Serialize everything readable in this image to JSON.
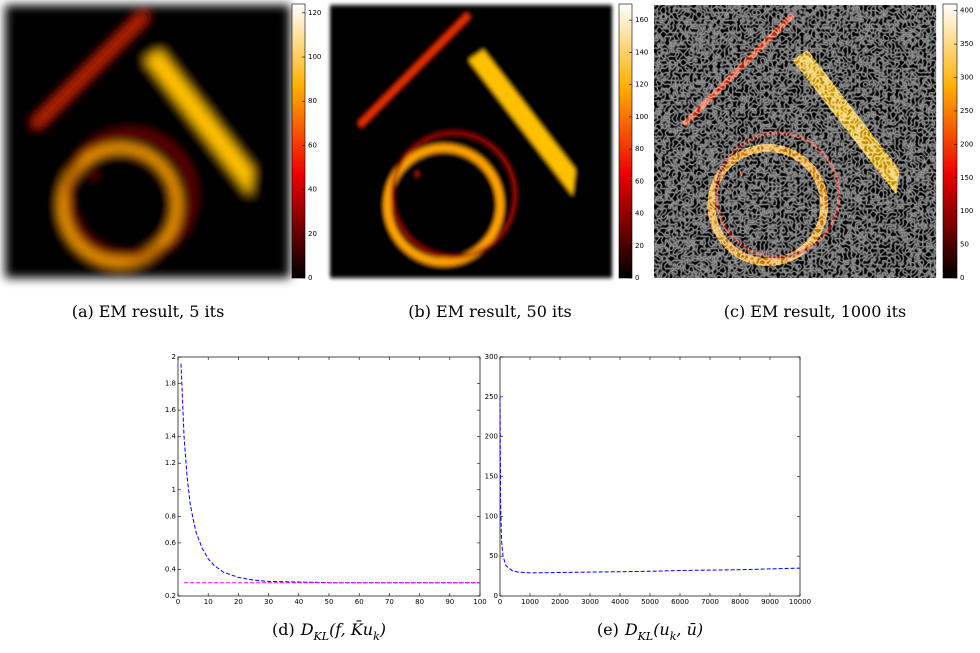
{
  "panels": [
    {
      "caption": {
        "label": "(a)",
        "text": "EM result, 5 its"
      },
      "colorbar": {
        "lim": [
          0,
          124
        ],
        "ticks": [
          0,
          20,
          40,
          60,
          80,
          100,
          120
        ]
      }
    },
    {
      "caption": {
        "label": "(b)",
        "text": "EM result, 50 its"
      },
      "colorbar": {
        "lim": [
          0,
          170
        ],
        "ticks": [
          0,
          20,
          40,
          60,
          80,
          100,
          120,
          140,
          160
        ]
      }
    },
    {
      "caption": {
        "label": "(c)",
        "text": "EM result, 1000 its"
      },
      "colorbar": {
        "lim": [
          0,
          410
        ],
        "ticks": [
          0,
          50,
          100,
          150,
          200,
          250,
          300,
          350,
          400
        ]
      }
    }
  ],
  "chart_data": [
    {
      "type": "line",
      "caption": {
        "label": "(d)",
        "parts": [
          {
            "text": "D"
          },
          {
            "text": "KL",
            "sub": true
          },
          {
            "text": "(f, K̄u"
          },
          {
            "text": "k",
            "sub": true
          },
          {
            "text": ")"
          }
        ]
      },
      "xlim": [
        0,
        100
      ],
      "xticks": [
        0,
        10,
        20,
        30,
        40,
        50,
        60,
        70,
        80,
        90,
        100
      ],
      "ylim": [
        0.2,
        2
      ],
      "yticks": [
        0.2,
        0.4,
        0.6,
        0.8,
        1,
        1.2,
        1.4,
        1.6,
        1.8,
        2
      ],
      "series": [
        {
          "color": "#0000ff",
          "x": [
            1,
            2,
            3,
            4,
            5,
            6,
            8,
            10,
            12,
            15,
            20,
            25,
            30,
            40,
            50,
            60,
            70,
            80,
            90,
            100
          ],
          "values": [
            1.95,
            1.4,
            1.1,
            0.9,
            0.78,
            0.68,
            0.56,
            0.48,
            0.43,
            0.38,
            0.34,
            0.32,
            0.31,
            0.305,
            0.3,
            0.3,
            0.3,
            0.3,
            0.3,
            0.3
          ]
        },
        {
          "color": "#ff00ff",
          "x": [
            2,
            100
          ],
          "values": [
            0.3,
            0.3
          ]
        }
      ]
    },
    {
      "type": "line",
      "caption": {
        "label": "(e)",
        "parts": [
          {
            "text": "D"
          },
          {
            "text": "KL",
            "sub": true
          },
          {
            "text": "(u"
          },
          {
            "text": "k",
            "sub": true
          },
          {
            "text": ", ū)"
          }
        ]
      },
      "xlim": [
        0,
        10000
      ],
      "xticks": [
        0,
        1000,
        2000,
        3000,
        4000,
        5000,
        6000,
        7000,
        8000,
        9000,
        10000
      ],
      "ylim": [
        0,
        300
      ],
      "yticks": [
        0,
        50,
        100,
        150,
        200,
        250,
        300
      ],
      "series": [
        {
          "color": "#0000ff",
          "x": [
            0,
            20,
            50,
            100,
            200,
            400,
            600,
            1000,
            2000,
            3000,
            4000,
            5000,
            6000,
            7000,
            8000,
            9000,
            10000
          ],
          "values": [
            250,
            120,
            70,
            50,
            38,
            32,
            30,
            29,
            29.5,
            30,
            30.5,
            31,
            32,
            32.5,
            33,
            34,
            35
          ]
        }
      ]
    }
  ]
}
